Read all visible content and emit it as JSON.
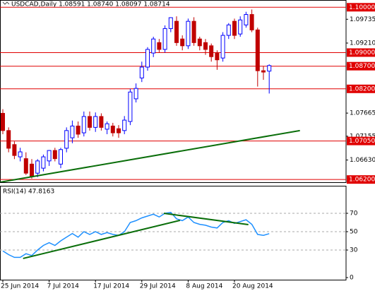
{
  "chart_data": [
    {
      "type": "candlestick",
      "title": "USDCAD,Daily  1.08591 1.08740 1.08097 1.08714",
      "categories": [
        "25 Jun 2014",
        null,
        null,
        null,
        null,
        null,
        null,
        null,
        "7 Jul 2014",
        null,
        null,
        null,
        null,
        null,
        null,
        null,
        "17 Jul 2014",
        null,
        null,
        null,
        null,
        null,
        null,
        null,
        "29 Jul 2014",
        null,
        null,
        null,
        null,
        null,
        null,
        null,
        "8 Aug 2014",
        null,
        null,
        null,
        null,
        null,
        null,
        null,
        "20 Aug 2014",
        null,
        null,
        null,
        null,
        null,
        null
      ],
      "open": [
        1.0766,
        1.0728,
        1.0697,
        1.067,
        1.0666,
        1.0654,
        1.0634,
        1.0645,
        1.0661,
        1.0684,
        1.0654,
        1.0689,
        1.0712,
        1.0738,
        1.0723,
        1.0759,
        1.0735,
        1.0759,
        1.0731,
        1.0738,
        1.0732,
        1.0728,
        1.0748,
        1.0798,
        1.0844,
        1.0868,
        1.0899,
        1.0922,
        1.0907,
        1.0953,
        1.0969,
        1.093,
        1.0915,
        1.0969,
        1.093,
        1.0922,
        1.0915,
        1.0899,
        1.0888,
        1.0938,
        1.0969,
        1.0941,
        1.0961,
        1.0984,
        1.095,
        1.086,
        1.08591
      ],
      "high": [
        1.0775,
        1.0735,
        1.0704,
        1.069,
        1.068,
        1.0665,
        1.0665,
        1.0675,
        1.0685,
        1.069,
        1.069,
        1.0735,
        1.075,
        1.0748,
        1.077,
        1.077,
        1.0768,
        1.0766,
        1.0748,
        1.0745,
        1.074,
        1.076,
        1.082,
        1.0832,
        1.088,
        1.0912,
        1.0935,
        1.093,
        1.096,
        1.0978,
        1.098,
        1.0938,
        1.0975,
        1.0978,
        1.0935,
        1.093,
        1.092,
        1.0905,
        1.0945,
        1.0965,
        1.0975,
        1.098,
        1.099,
        1.0995,
        1.0955,
        1.087,
        1.0874
      ],
      "low": [
        1.072,
        1.068,
        1.0665,
        1.066,
        1.063,
        1.0622,
        1.0625,
        1.0638,
        1.065,
        1.066,
        1.0645,
        1.068,
        1.07,
        1.0712,
        1.0715,
        1.0728,
        1.0725,
        1.0728,
        1.072,
        1.0715,
        1.0712,
        1.072,
        1.074,
        1.079,
        1.0835,
        1.086,
        1.089,
        1.09,
        1.09,
        1.0945,
        1.0915,
        1.0905,
        1.0908,
        1.0915,
        1.0905,
        1.0895,
        1.088,
        1.0862,
        1.088,
        1.093,
        1.093,
        1.0935,
        1.0955,
        1.0945,
        1.0825,
        1.084,
        1.08097
      ],
      "close": [
        1.0728,
        1.0689,
        1.0673,
        1.0681,
        1.0634,
        1.0626,
        1.0661,
        1.067,
        1.0684,
        1.0666,
        1.0686,
        1.0728,
        1.0738,
        1.072,
        1.0759,
        1.0735,
        1.0759,
        1.0735,
        1.0743,
        1.0723,
        1.0723,
        1.0751,
        1.0813,
        1.0821,
        1.0868,
        1.0907,
        1.093,
        1.0907,
        1.0953,
        1.0977,
        1.0922,
        1.0915,
        1.0969,
        1.0922,
        1.0915,
        1.0907,
        1.0891,
        1.0884,
        1.0938,
        1.0961,
        1.0938,
        1.0972,
        1.0984,
        1.095,
        1.086,
        1.0857,
        1.08714
      ],
      "up_color": "#0000ff",
      "down_color": "#c00000",
      "ylim": [
        1.0614,
        1.1016
      ],
      "yticks": [
        1.09735,
        {
          "value": 1.0921,
          "label": "1.09210"
        },
        1.07665,
        1.07155,
        {
          "value": 1.0663,
          "label": "1.06630"
        }
      ],
      "levels": [
        {
          "value": 1.1,
          "label": "1.10000"
        },
        {
          "value": 1.09,
          "label": "1.09000"
        },
        {
          "value": 1.087,
          "label": "1.08700"
        },
        {
          "value": 1.082,
          "label": "1.08200"
        },
        {
          "value": 1.0705,
          "label": "1.07050"
        },
        {
          "value": 1.062,
          "label": "1.06200"
        }
      ],
      "level_color": "#e00000",
      "trendlines": [
        {
          "color": "#0a6e0a",
          "points": [
            [
              -0.5,
              1.0614
            ],
            [
              51.3,
              1.0728
            ]
          ]
        }
      ]
    },
    {
      "type": "line",
      "title": "RSI(14) 47.8163",
      "values": [
        29,
        25,
        22,
        22,
        26,
        24,
        30,
        35,
        38,
        35,
        40,
        44,
        48,
        44,
        50,
        47,
        50,
        47,
        49,
        47,
        46,
        50,
        60,
        62,
        65,
        67,
        69,
        66,
        70,
        71,
        64,
        62,
        66,
        60,
        58,
        57,
        55,
        54,
        60,
        62,
        59,
        61,
        63,
        58,
        47,
        46,
        47.8163
      ],
      "color": "#1e90ff",
      "ylim": [
        0,
        100
      ],
      "yticks": [
        0,
        30,
        50,
        70
      ],
      "trendlines": [
        {
          "color": "#0a6e0a",
          "points": [
            [
              3.5,
              20.8
            ],
            [
              30.6,
              62.3
            ]
          ]
        },
        {
          "color": "#0a6e0a",
          "points": [
            [
              27.8,
              70
            ],
            [
              42.4,
              57.7
            ]
          ]
        }
      ]
    }
  ]
}
